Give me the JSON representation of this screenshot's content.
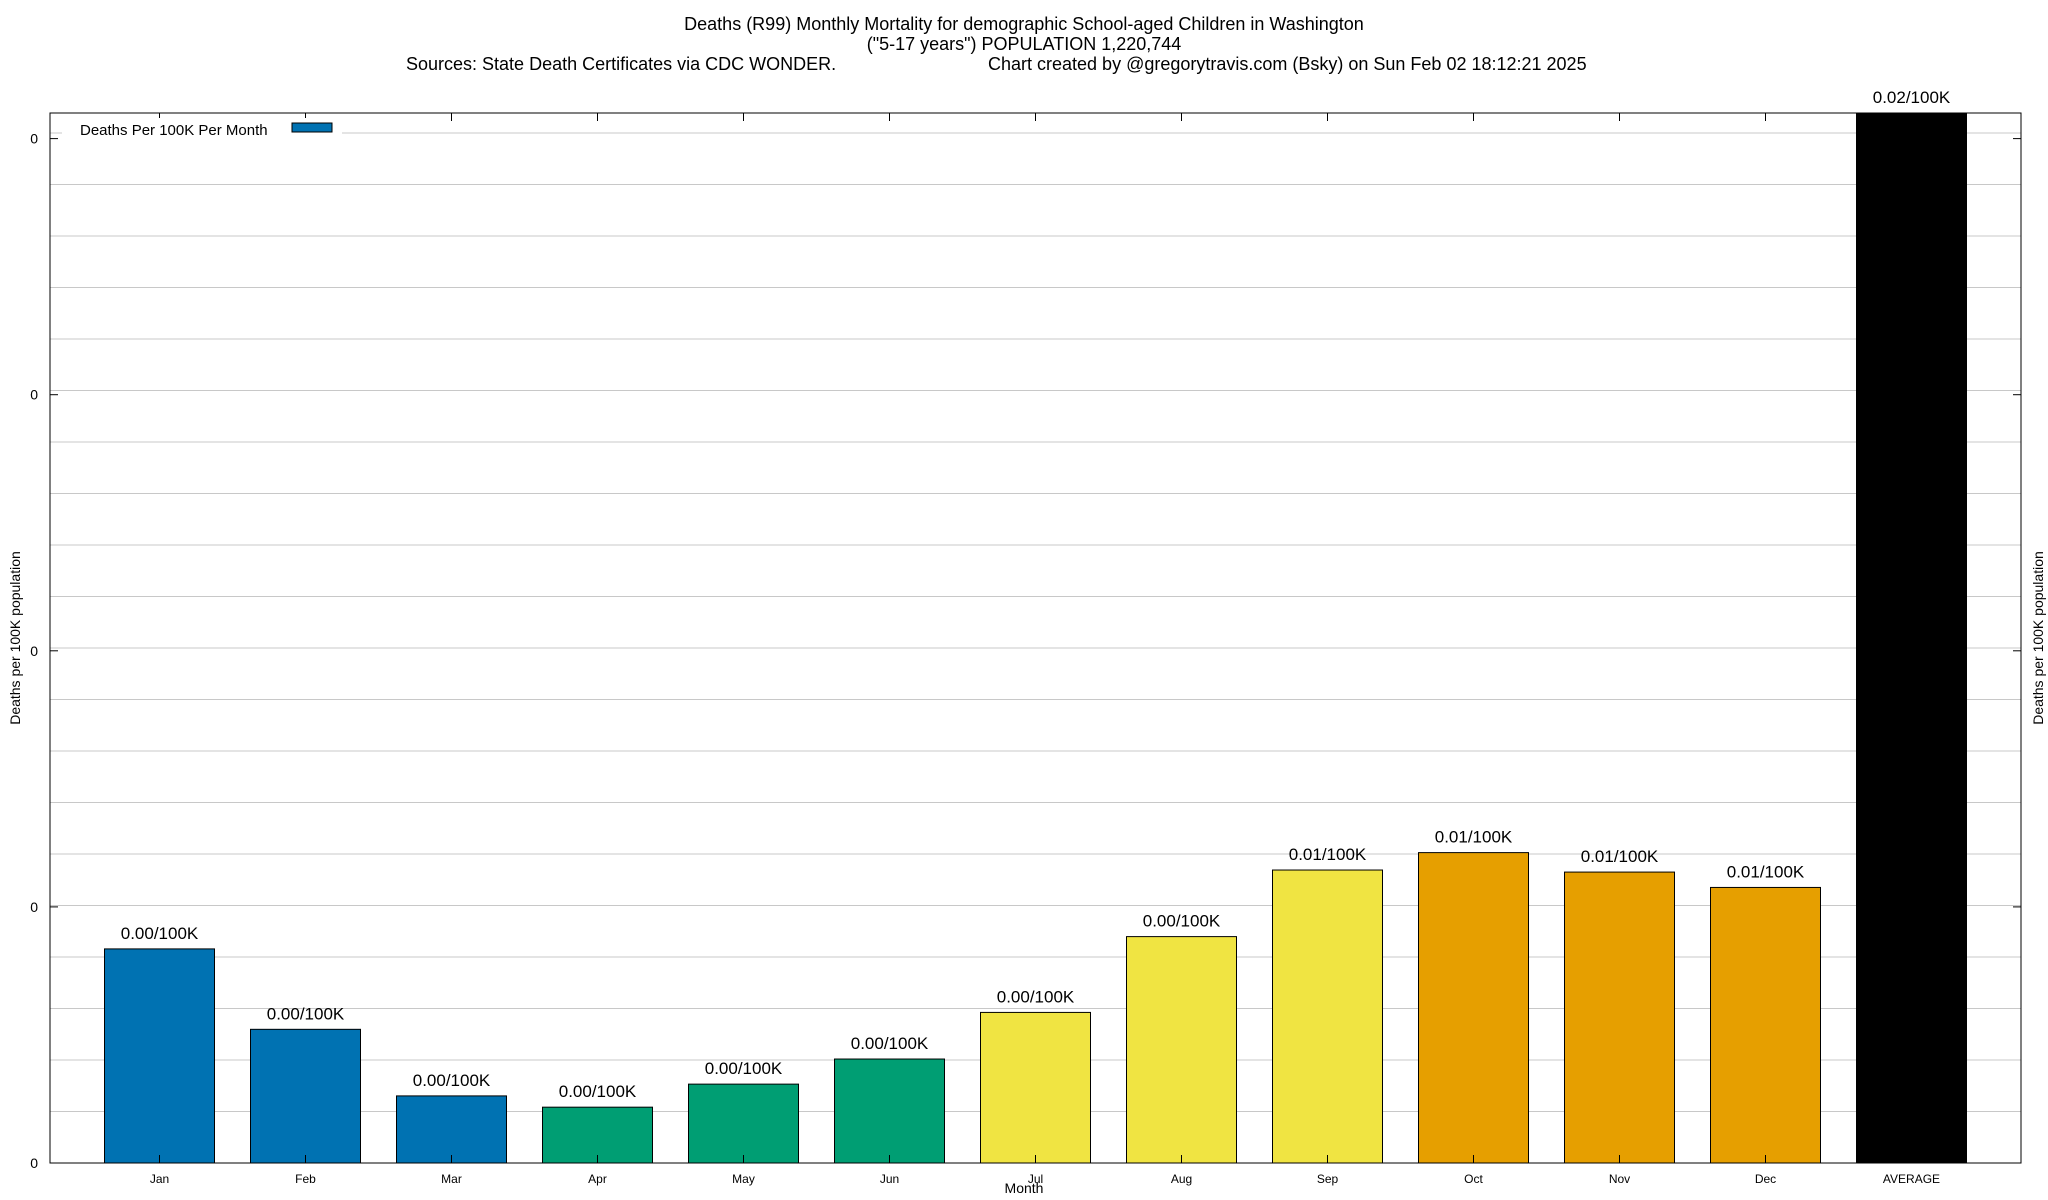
{
  "chart_data": {
    "type": "bar",
    "title": "Deaths (R99) Monthly Mortality for demographic School-aged Children in Washington",
    "subtitle": "(\"5-17 years\") POPULATION 1,220,744",
    "sources": "Sources: State Death Certificates via CDC WONDER.",
    "credit": "Chart created by @gregorytravis.com (Bsky) on Sun Feb 02 18:12:21 2025",
    "xlabel": "Month",
    "ylabel": "Deaths per 100K population",
    "y2label": "Deaths per 100K population",
    "ylim": [
      0,
      0.0205
    ],
    "yticks": [
      0,
      0.005,
      0.01,
      0.015,
      0.02
    ],
    "ytick_labels": [
      "0",
      "0",
      "0",
      "0",
      "0"
    ],
    "categories": [
      "Jan",
      "Feb",
      "Mar",
      "Apr",
      "May",
      "Jun",
      "Jul",
      "Aug",
      "Sep",
      "Oct",
      "Nov",
      "Dec",
      "AVERAGE"
    ],
    "values": [
      0.00418,
      0.00261,
      0.00131,
      0.00109,
      0.00154,
      0.00203,
      0.00294,
      0.00442,
      0.00572,
      0.00606,
      0.00568,
      0.00538,
      0.0205
    ],
    "data_labels": [
      "0.00/100K",
      "0.00/100K",
      "0.00/100K",
      "0.00/100K",
      "0.00/100K",
      "0.00/100K",
      "0.00/100K",
      "0.00/100K",
      "0.01/100K",
      "0.01/100K",
      "0.01/100K",
      "0.01/100K",
      "0.02/100K"
    ],
    "colors": [
      "#0072b2",
      "#0072b2",
      "#0072b2",
      "#009e73",
      "#009e73",
      "#009e73",
      "#f0e442",
      "#f0e442",
      "#f0e442",
      "#e69f00",
      "#e69f00",
      "#e69f00",
      "#000000"
    ],
    "legend": {
      "label": "Deaths Per 100K Per Month",
      "color": "#0072b2",
      "position": "top-left"
    },
    "grid": true
  }
}
